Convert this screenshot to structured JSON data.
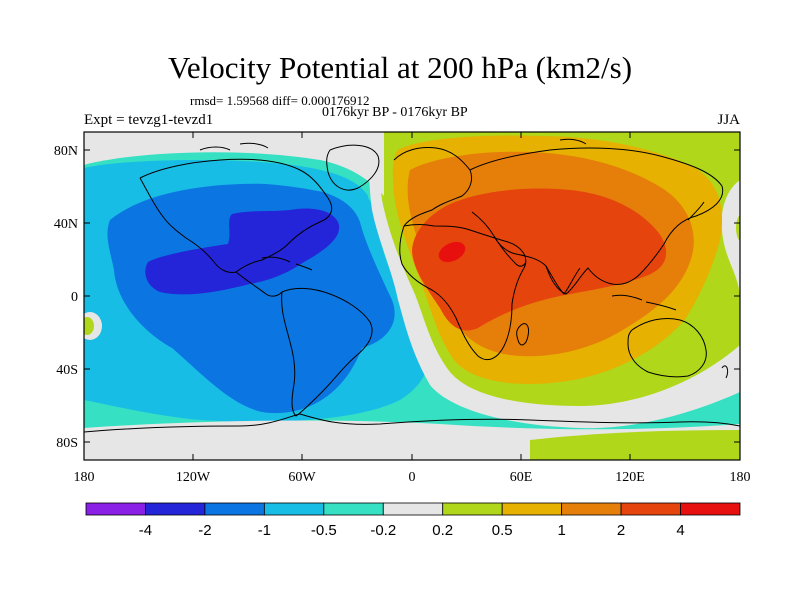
{
  "title": "Velocity Potential at 200 hPa (km2/s)",
  "stats": "rmsd= 1.59568 diff= 0.000176912",
  "period": "0176kyr BP - 0176kyr BP",
  "experiment": "Expt = tevzg1-tevzd1",
  "season": "JJA",
  "lat_labels": [
    "80N",
    "40N",
    "0",
    "40S",
    "80S"
  ],
  "lon_labels": [
    "180",
    "120W",
    "60W",
    "0",
    "60E",
    "120E",
    "180"
  ],
  "colorbar": {
    "colors": [
      "#8a1fe6",
      "#2424d8",
      "#0b76e1",
      "#18bde6",
      "#36e0c3",
      "#e6e6e6",
      "#b0d71a",
      "#e6b100",
      "#e67e0a",
      "#e6440d",
      "#e80f0f"
    ],
    "labels": [
      "-4",
      "-2",
      "-1",
      "-0.5",
      "-0.2",
      "0.2",
      "0.5",
      "1",
      "2",
      "4"
    ]
  },
  "colors": {
    "very_neg": "#2424d8",
    "strong_neg": "#0b76e1",
    "mod_neg": "#18bde6",
    "weak_neg": "#36e0c3",
    "neutral": "#e6e6e6",
    "weak_pos": "#b0d71a",
    "mod_pos": "#e6b100",
    "strong_pos": "#e67e0a",
    "very_pos": "#e6440d",
    "max_pos": "#e80f0f"
  }
}
